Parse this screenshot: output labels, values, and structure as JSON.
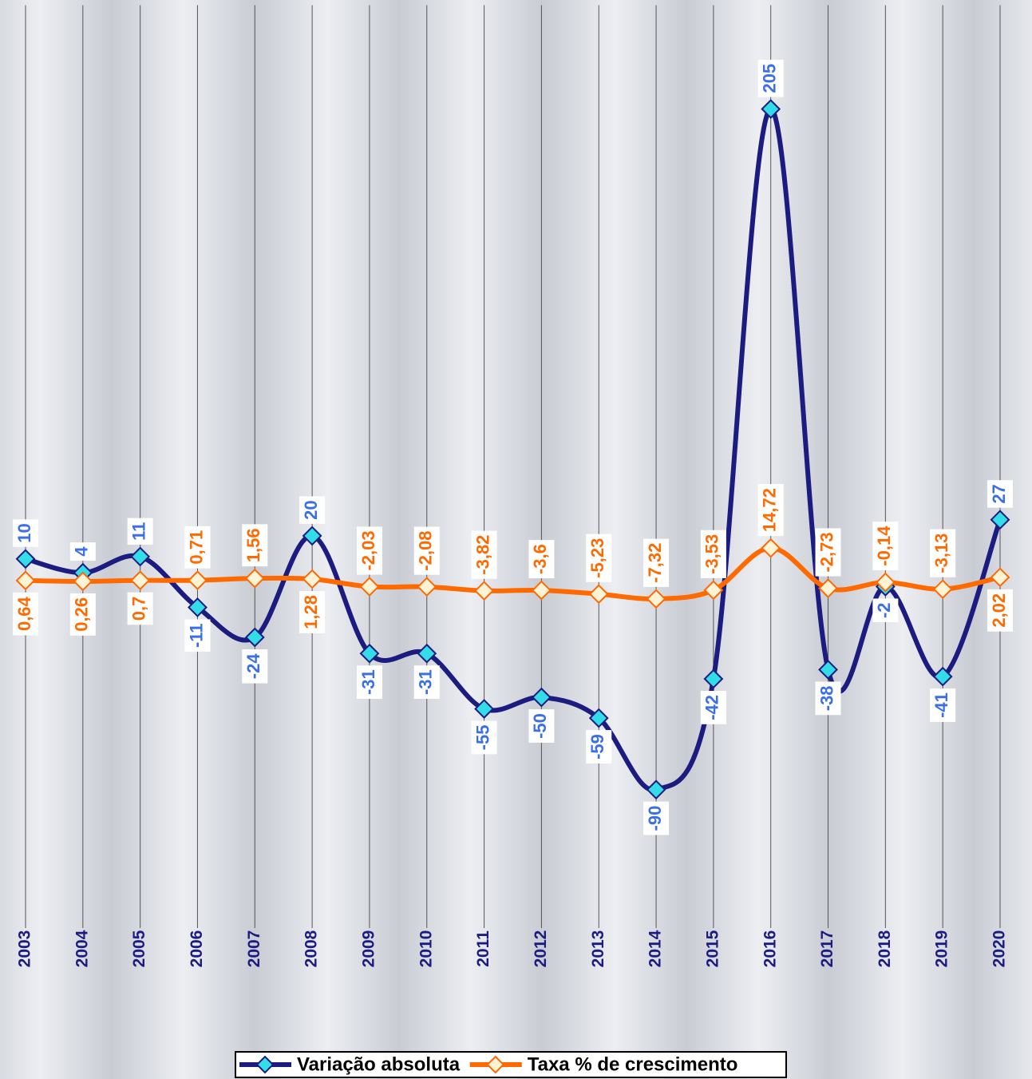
{
  "chart_data": {
    "type": "line",
    "categories": [
      "2003",
      "2004",
      "2005",
      "2006",
      "2007",
      "2008",
      "2009",
      "2010",
      "2011",
      "2012",
      "2013",
      "2014",
      "2015",
      "2016",
      "2017",
      "2018",
      "2019",
      "2020"
    ],
    "series": [
      {
        "name": "Variação absoluta",
        "color": "#1c1c80",
        "marker_color": "#33dde8",
        "label_color": "#3b6fe6",
        "values": [
          10,
          4,
          11,
          -11,
          -24,
          20,
          -31,
          -31,
          -55,
          -50,
          -59,
          -90,
          -42,
          205,
          -38,
          -2,
          -41,
          27
        ]
      },
      {
        "name": "Taxa % de crescimento",
        "color": "#ff6a00",
        "marker_color": "#fff3d6",
        "label_color": "#ff6a00",
        "values": [
          0.64,
          0.26,
          0.7,
          0.71,
          1.56,
          1.28,
          -2.03,
          -2.08,
          -3.82,
          -3.6,
          -5.23,
          -7.32,
          -3.53,
          14.72,
          -2.73,
          -0.14,
          -3.13,
          2.02
        ],
        "value_labels": [
          "0,64",
          "0,26",
          "0,7",
          "0,71",
          "1,56",
          "1,28",
          "-2,03",
          "-2,08",
          "-3,82",
          "-3,6",
          "-5,23",
          "-7,32",
          "-3,53",
          "14,72",
          "-2,73",
          "-0,14",
          "-3,13",
          "2,02"
        ]
      }
    ],
    "ylim": [
      -150,
      250
    ],
    "legend": "bottom"
  }
}
